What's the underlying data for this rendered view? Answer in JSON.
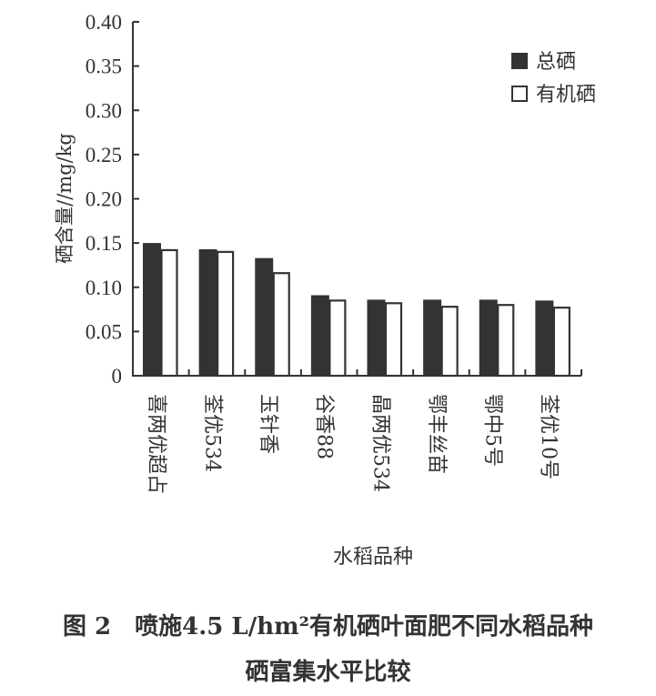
{
  "chart_data": {
    "type": "bar",
    "xlabel": "水稻品种",
    "ylabel": "硒含量//mg/kg",
    "ylim": [
      0,
      0.4
    ],
    "yticks": [
      "0",
      "0.05",
      "0.10",
      "0.15",
      "0.20",
      "0.25",
      "0.30",
      "0.35",
      "0.40"
    ],
    "categories": [
      "喜两优超占",
      "荃优534",
      "玉针香",
      "谷香88",
      "晶两优534",
      "鄂丰丝苗",
      "鄂中5号",
      "荃优10号"
    ],
    "series": [
      {
        "name": "总硒",
        "color": "#333333",
        "values": [
          0.15,
          0.143,
          0.133,
          0.091,
          0.086,
          0.086,
          0.086,
          0.085
        ]
      },
      {
        "name": "有机硒",
        "color": "#ffffff",
        "values": [
          0.143,
          0.141,
          0.117,
          0.086,
          0.083,
          0.079,
          0.081,
          0.078
        ]
      }
    ],
    "legend_position": "top-right",
    "grid": false
  },
  "caption": {
    "line1": "图 2　喷施4.5 L/hm²有机硒叶面肥不同水稻品种",
    "line2": "硒富集水平比较"
  }
}
